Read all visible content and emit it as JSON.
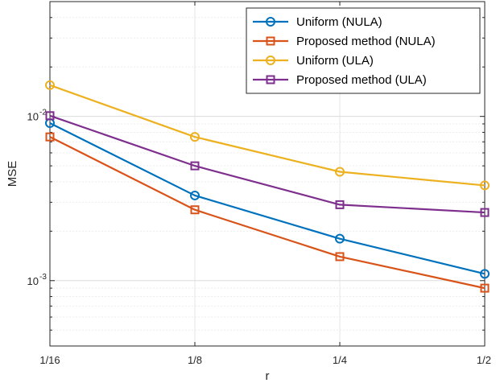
{
  "chart_data": {
    "type": "line",
    "title": "",
    "xlabel": "r",
    "ylabel": "MSE",
    "x_ticks": [
      "1/16",
      "1/8",
      "1/4",
      "1/2"
    ],
    "y_tick_labels": [
      {
        "value": 0.001,
        "base": "10",
        "exp": "-3"
      },
      {
        "value": 0.01,
        "base": "10",
        "exp": "-2"
      }
    ],
    "yscale": "log",
    "ylim": [
      0.0004,
      0.05
    ],
    "grid": true,
    "legend_position": "top-right",
    "series": [
      {
        "name": "Uniform (NULA)",
        "color": "#0072BD",
        "marker": "circle",
        "values": [
          0.0091,
          0.0033,
          0.0018,
          0.0011
        ]
      },
      {
        "name": "Proposed method (NULA)",
        "color": "#D95319",
        "marker": "square",
        "values": [
          0.0075,
          0.0027,
          0.0014,
          0.0009
        ]
      },
      {
        "name": "Uniform (ULA)",
        "color": "#EDB120",
        "marker": "circle",
        "values": [
          0.0155,
          0.0075,
          0.0046,
          0.0038
        ]
      },
      {
        "name": "Proposed method (ULA)",
        "color": "#7E2F8E",
        "marker": "square",
        "values": [
          0.0101,
          0.005,
          0.0029,
          0.0026
        ]
      }
    ]
  }
}
